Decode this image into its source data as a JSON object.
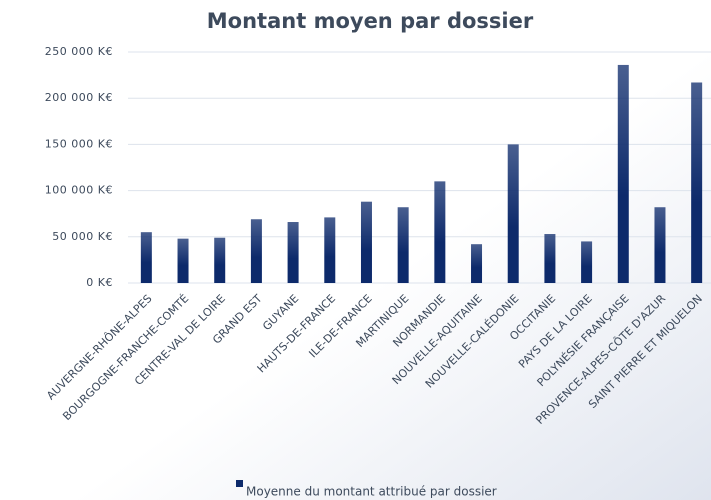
{
  "chart_data": {
    "type": "bar",
    "title": "Montant moyen par dossier",
    "categories": [
      "AUVERGNE-RHÔNE-ALPES",
      "BOURGOGNE-FRANCHE-COMTÉ",
      "CENTRE-VAL DE LOIRE",
      "GRAND EST",
      "GUYANE",
      "HAUTS-DE-FRANCE",
      "ILE-DE-FRANCE",
      "MARTINIQUE",
      "NORMANDIE",
      "NOUVELLE-AQUITAINE",
      "NOUVELLE-CALÉDONIE",
      "OCCITANIE",
      "PAYS DE LA LOIRE",
      "POLYNÉSIE FRANÇAISE",
      "PROVENCE-ALPES-CÔTE D'AZUR",
      "SAINT PIERRE ET MIQUELON"
    ],
    "series": [
      {
        "name": "Moyenne du montant attribué par dossier",
        "color": "#0d2a6b",
        "values": [
          55000,
          48000,
          49000,
          69000,
          66000,
          71000,
          88000,
          82000,
          110000,
          42000,
          150000,
          53000,
          45000,
          236000,
          82000,
          217000
        ]
      }
    ],
    "ylim": [
      0,
      250000
    ],
    "yticks": [
      {
        "value": 0,
        "label": "0 K€"
      },
      {
        "value": 50000,
        "label": "50 000 K€"
      },
      {
        "value": 100000,
        "label": "100 000 K€"
      },
      {
        "value": 150000,
        "label": "150 000 K€"
      },
      {
        "value": 200000,
        "label": "200 000 K€"
      },
      {
        "value": 250000,
        "label": "250 000 K€"
      }
    ],
    "grid": true,
    "legend": "bottom"
  }
}
